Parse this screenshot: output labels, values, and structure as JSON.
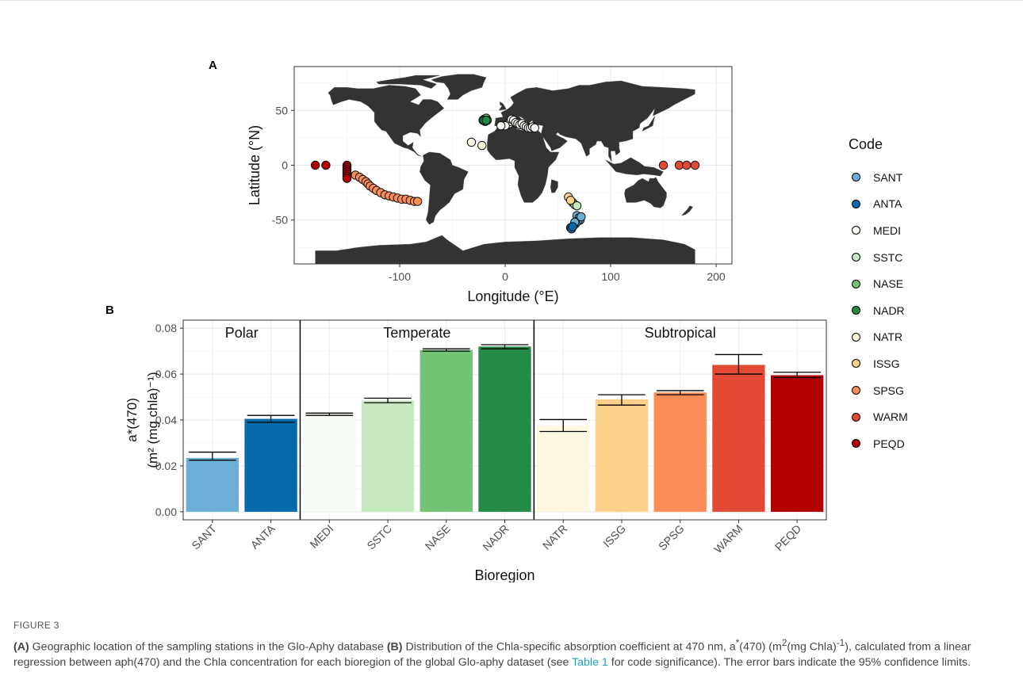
{
  "panel_a_label": "A",
  "panel_b_label": "B",
  "chart_data": [
    {
      "type": "scatter",
      "xlabel": "Longitude (°E)",
      "ylabel": "Latitude (°N)",
      "xlim": [
        -200,
        215
      ],
      "ylim": [
        -90,
        90
      ],
      "xticks": [
        -100,
        0,
        100,
        200
      ],
      "yticks": [
        -50,
        0,
        50
      ],
      "grid": true,
      "legend_title": "Code",
      "legend_position": "right",
      "series": [
        {
          "name": "SANT",
          "color": "#6BAED6",
          "points": [
            [
              68,
              -46
            ],
            [
              70,
              -48
            ],
            [
              71,
              -50
            ],
            [
              69,
              -51
            ],
            [
              67,
              -53
            ],
            [
              65,
              -55
            ],
            [
              66,
              -52
            ],
            [
              72,
              -47
            ]
          ]
        },
        {
          "name": "ANTA",
          "color": "#0868AC",
          "points": [
            [
              62,
              -57
            ],
            [
              63,
              -58
            ],
            [
              64,
              -56
            ]
          ]
        },
        {
          "name": "MEDI",
          "color": "#F7FCF5",
          "points": [
            [
              -2,
              36
            ],
            [
              2,
              37
            ],
            [
              4,
              38
            ],
            [
              5,
              40
            ],
            [
              6,
              42
            ],
            [
              8,
              41
            ],
            [
              10,
              39
            ],
            [
              12,
              38
            ],
            [
              14,
              37
            ],
            [
              16,
              38
            ],
            [
              18,
              36
            ],
            [
              20,
              35
            ],
            [
              22,
              34
            ],
            [
              24,
              34
            ],
            [
              26,
              35
            ],
            [
              28,
              34
            ],
            [
              0,
              36
            ],
            [
              -4,
              36
            ]
          ]
        },
        {
          "name": "SSTC",
          "color": "#C7E9C0",
          "points": [
            [
              64,
              -34
            ],
            [
              66,
              -36
            ],
            [
              68,
              -37
            ]
          ]
        },
        {
          "name": "NASE",
          "color": "#74C476",
          "points": [
            [
              -20,
              42
            ],
            [
              -19,
              40
            ],
            [
              -21,
              41
            ],
            [
              -18,
              43
            ],
            [
              -17,
              41
            ]
          ]
        },
        {
          "name": "NADR",
          "color": "#238B45",
          "points": [
            [
              -20,
              41
            ],
            [
              -18,
              41
            ]
          ]
        },
        {
          "name": "NATR",
          "color": "#FFF7E0",
          "points": [
            [
              -32,
              21
            ],
            [
              -22,
              18
            ]
          ]
        },
        {
          "name": "ISSG",
          "color": "#FDD08A",
          "points": [
            [
              60,
              -29
            ],
            [
              62,
              -32
            ]
          ]
        },
        {
          "name": "SPSG",
          "color": "#FC8D59",
          "points": [
            [
              -142,
              -9
            ],
            [
              -138,
              -11
            ],
            [
              -135,
              -13
            ],
            [
              -132,
              -15
            ],
            [
              -130,
              -17
            ],
            [
              -128,
              -19
            ],
            [
              -125,
              -21
            ],
            [
              -122,
              -23
            ],
            [
              -118,
              -25
            ],
            [
              -114,
              -27
            ],
            [
              -110,
              -28
            ],
            [
              -106,
              -29
            ],
            [
              -102,
              -30
            ],
            [
              -98,
              -31
            ],
            [
              -94,
              -31
            ],
            [
              -90,
              -32
            ],
            [
              -86,
              -33
            ],
            [
              -83,
              -33
            ]
          ]
        },
        {
          "name": "WARM",
          "color": "#E34A33",
          "points": [
            [
              150,
              0
            ],
            [
              165,
              0
            ],
            [
              172,
              0
            ],
            [
              180,
              0
            ]
          ]
        },
        {
          "name": "PEQD",
          "color": "#B30000",
          "points": [
            [
              -180,
              0
            ],
            [
              -170,
              0
            ],
            [
              -150,
              0
            ],
            [
              -150,
              -2
            ],
            [
              -150,
              -4
            ],
            [
              -150,
              -6
            ],
            [
              -150,
              -8
            ],
            [
              -150,
              -10
            ],
            [
              -150,
              -12
            ]
          ]
        }
      ]
    },
    {
      "type": "bar",
      "xlabel": "Bioregion",
      "ylabel_line1": "a*(470)",
      "ylabel_line2": "(m² (mg chla)⁻¹)",
      "ylim": [
        -0.0035,
        0.0835
      ],
      "yticks": [
        "0.00",
        "0.02",
        "0.04",
        "0.06",
        "0.08"
      ],
      "grid": true,
      "groups": [
        {
          "label": "Polar",
          "range": [
            0,
            1
          ]
        },
        {
          "label": "Temperate",
          "range": [
            2,
            5
          ]
        },
        {
          "label": "Subtropical",
          "range": [
            6,
            10
          ]
        }
      ],
      "categories": [
        "SANT",
        "ANTA",
        "MEDI",
        "SSTC",
        "NASE",
        "NADR",
        "NATR",
        "ISSG",
        "SPSG",
        "WARM",
        "PEQD"
      ],
      "values": [
        0.0235,
        0.0405,
        0.0425,
        0.0485,
        0.0705,
        0.072,
        0.0375,
        0.049,
        0.052,
        0.064,
        0.0595
      ],
      "err_low": [
        0.0225,
        0.039,
        0.042,
        0.0475,
        0.07,
        0.071,
        0.035,
        0.0465,
        0.051,
        0.06,
        0.0585
      ],
      "err_high": [
        0.026,
        0.042,
        0.043,
        0.0495,
        0.071,
        0.0728,
        0.0402,
        0.051,
        0.0528,
        0.0685,
        0.0608
      ],
      "colors": [
        "#6BAED6",
        "#0868AC",
        "#F7FCF5",
        "#C7E9C0",
        "#74C476",
        "#238B45",
        "#FFF7E0",
        "#FDD08A",
        "#FC8D59",
        "#E34A33",
        "#B30000"
      ]
    }
  ],
  "caption": {
    "label": "FIGURE 3",
    "a_tag": "(A)",
    "a_text": " Geographic location of the sampling stations in the Glo-Aphy database ",
    "b_tag": "(B)",
    "b_text": " Distribution of the Chla-specific absorption coefficient at 470 nm, a",
    "sup_star": "*",
    "b_text2": "(470) (m",
    "sup_2": "2",
    "b_text3": "(mg Chla)",
    "sup_neg1": "-1",
    "b_text4": "), calculated from a linear regression between aph(470) and the Chla concentration for each bioregion of the global Glo-aphy dataset (see ",
    "link_text": "Table 1",
    "b_text5": " for code significance). The error bars indicate the 95% confidence limits."
  }
}
